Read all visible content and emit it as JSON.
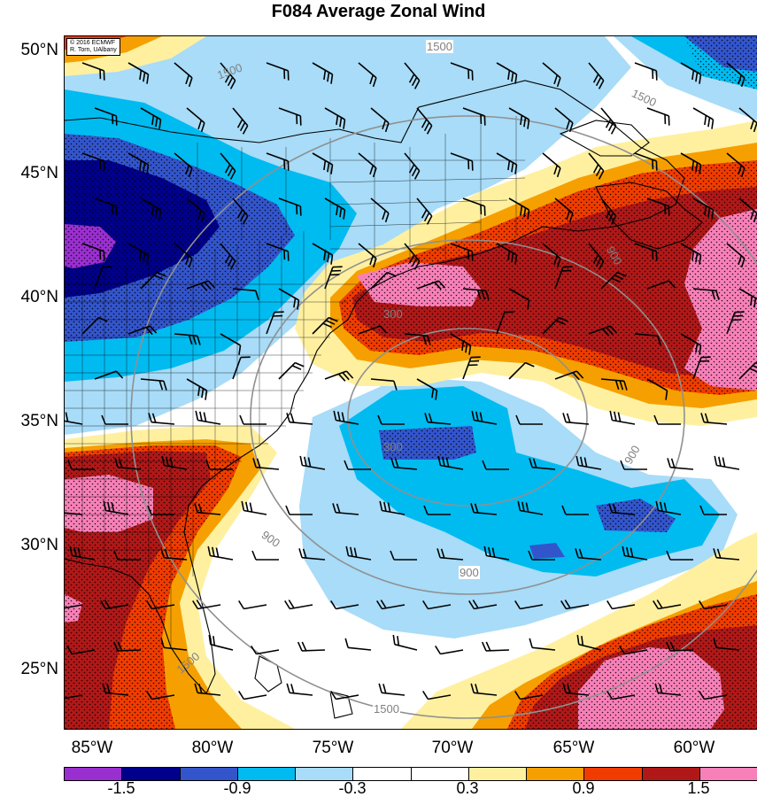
{
  "title": "F084 Average Zonal Wind",
  "credit": [
    "© 2016 ECMWF",
    "R. Torn, UAlbany"
  ],
  "map": {
    "lat_labels": [
      "50°N",
      "45°N",
      "40°N",
      "35°N",
      "30°N",
      "25°N"
    ],
    "lon_labels": [
      "85°W",
      "80°W",
      "75°W",
      "70°W",
      "65°W",
      "60°W"
    ],
    "contour_labels": [
      "1500",
      "1500",
      "1500",
      "1500",
      "900",
      "900",
      "900",
      "900",
      "300",
      "300",
      "1500"
    ],
    "colors": {
      "c_neg_1_5": "#9a2fd0",
      "c_neg_1_2": "#00008c",
      "c_neg_0_9": "#3355cc",
      "c_neg_0_6": "#00bbf0",
      "c_neg_0_3": "#a8dcf8",
      "c_neutral": "#ffffff",
      "c_pos_0_3": "#fff0a0",
      "c_pos_0_6": "#f5a000",
      "c_pos_0_9": "#f03c00",
      "c_pos_1_2": "#b01818",
      "c_pos_1_5": "#f880b8",
      "range_ring": "#909090"
    }
  },
  "colorbar": {
    "labels": [
      "-1.5",
      "-0.9",
      "-0.3",
      "0.3",
      "0.9",
      "1.5"
    ],
    "colors": [
      "#9a2fd0",
      "#00008c",
      "#3355cc",
      "#00bbf0",
      "#a8dcf8",
      "#ffffff",
      "#ffffff",
      "#fff0a0",
      "#f5a000",
      "#f03c00",
      "#b01818",
      "#f880b8"
    ]
  }
}
